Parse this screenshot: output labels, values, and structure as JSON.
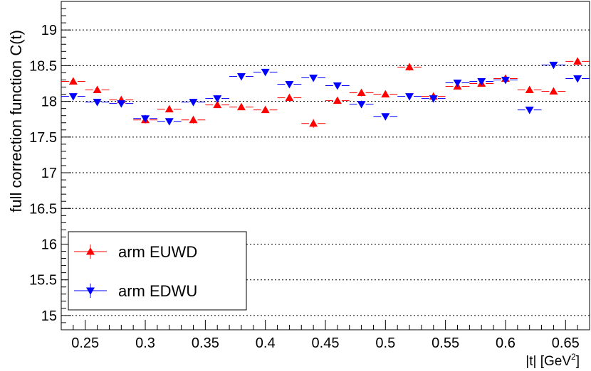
{
  "chart_data": {
    "type": "scatter",
    "title": "",
    "xlabel": "|t| [GeV",
    "xlabel_sup": "2",
    "xlabel_close": "]",
    "ylabel": "full correction function C(t)",
    "xlim": [
      0.23,
      0.67
    ],
    "ylim": [
      14.8,
      19.4
    ],
    "x_ticks": [
      0.25,
      0.3,
      0.35,
      0.4,
      0.45,
      0.5,
      0.55,
      0.6,
      0.65
    ],
    "x_tick_labels": [
      "0.25",
      "0.3",
      "0.35",
      "0.4",
      "0.45",
      "0.5",
      "0.55",
      "0.6",
      "0.65"
    ],
    "y_ticks": [
      15,
      15.5,
      16,
      16.5,
      17,
      17.5,
      18,
      18.5,
      19
    ],
    "y_tick_labels": [
      "15",
      "15.5",
      "16",
      "16.5",
      "17",
      "17.5",
      "18",
      "18.5",
      "19"
    ],
    "grid": "horizontal dotted",
    "legend_position": "bottom-left",
    "x_error": 0.01,
    "series": [
      {
        "name": "arm EUWD",
        "color": "#ff0000",
        "marker": "triangle-up",
        "x": [
          0.24,
          0.26,
          0.28,
          0.3,
          0.32,
          0.34,
          0.36,
          0.38,
          0.4,
          0.42,
          0.44,
          0.46,
          0.48,
          0.5,
          0.52,
          0.54,
          0.56,
          0.58,
          0.6,
          0.62,
          0.64,
          0.66
        ],
        "y": [
          18.28,
          18.16,
          18.02,
          17.74,
          17.89,
          17.74,
          17.95,
          17.92,
          17.88,
          18.05,
          17.69,
          18.01,
          18.12,
          18.1,
          18.48,
          18.07,
          18.21,
          18.25,
          18.32,
          18.16,
          18.14,
          18.56
        ],
        "err": [
          0.04,
          0.04,
          0.04,
          0.05,
          0.04,
          0.05,
          0.04,
          0.04,
          0.04,
          0.04,
          0.06,
          0.04,
          0.05,
          0.04,
          0.05,
          0.04,
          0.04,
          0.04,
          0.04,
          0.04,
          0.04,
          0.05
        ]
      },
      {
        "name": "arm EDWU",
        "color": "#0000ff",
        "marker": "triangle-down",
        "x": [
          0.24,
          0.26,
          0.28,
          0.3,
          0.32,
          0.34,
          0.36,
          0.38,
          0.4,
          0.42,
          0.44,
          0.46,
          0.48,
          0.5,
          0.52,
          0.54,
          0.56,
          0.58,
          0.6,
          0.62,
          0.64,
          0.66
        ],
        "y": [
          18.07,
          17.99,
          17.97,
          17.76,
          17.72,
          17.99,
          18.04,
          18.35,
          18.41,
          18.24,
          18.33,
          18.22,
          17.96,
          17.79,
          18.07,
          18.04,
          18.26,
          18.28,
          18.3,
          17.88,
          18.51,
          18.32
        ],
        "err": [
          0.04,
          0.04,
          0.04,
          0.05,
          0.04,
          0.04,
          0.04,
          0.04,
          0.04,
          0.04,
          0.04,
          0.04,
          0.05,
          0.04,
          0.04,
          0.04,
          0.04,
          0.04,
          0.04,
          0.04,
          0.04,
          0.04
        ]
      }
    ]
  }
}
